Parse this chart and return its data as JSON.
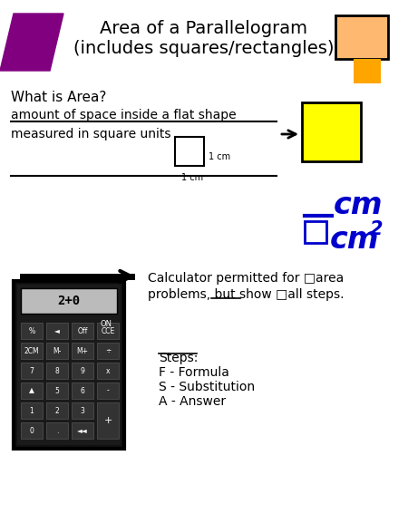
{
  "title_line1": "Area of a Parallelogram",
  "title_line2": "(includes squares/rectangles)",
  "title_fontsize": 14,
  "bg_color": "#ffffff",
  "parallelogram_color": "#800080",
  "orange_rect_color": "#FFA500",
  "light_orange_rect_color": "#FFB870",
  "yellow_square_color": "#FFFF00",
  "what_is_area": "What is Area?",
  "line1": "amount of space inside a flat shape",
  "line2": "measured in square units",
  "label_1cm_right": "1 cm",
  "label_1cm_bottom": "1 cm",
  "steps_title": "Steps:",
  "steps": [
    "F - Formula",
    "S - Substitution",
    "A - Answer"
  ],
  "blue_color": "#0000CC",
  "dark_text": "#222222"
}
